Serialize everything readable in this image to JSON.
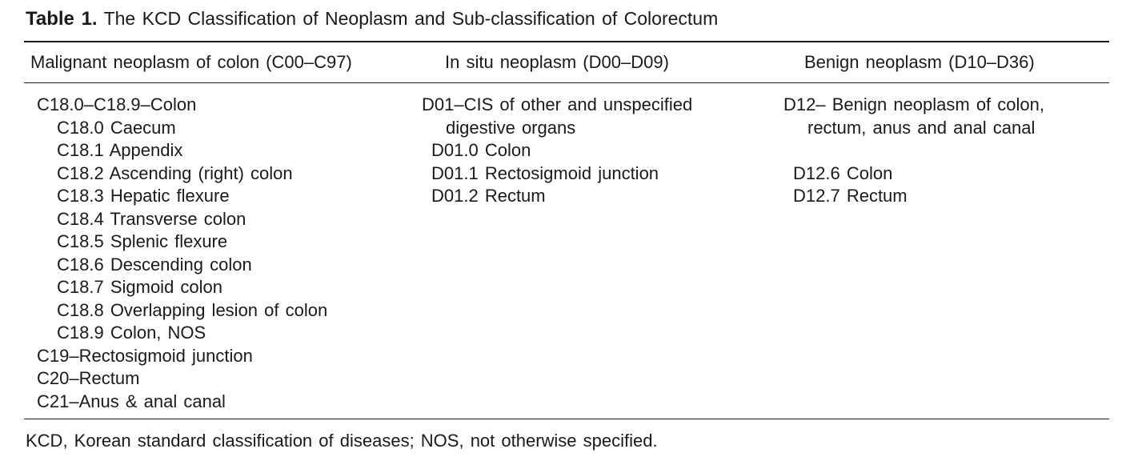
{
  "caption": {
    "label": "Table 1.",
    "title": "The KCD Classification of Neoplasm and Sub-classification of Colorectum"
  },
  "headers": [
    "Malignant neoplasm of colon (C00–C97)",
    "In situ neoplasm (D00–D09)",
    "Benign neoplasm (D10–D36)"
  ],
  "columns": {
    "malignant": [
      "C18.0–C18.9–Colon",
      "C18.0 Caecum",
      "C18.1 Appendix",
      "C18.2 Ascending (right) colon",
      "C18.3 Hepatic flexure",
      "C18.4 Transverse colon",
      "C18.5 Splenic flexure",
      "C18.6 Descending colon",
      "C18.7 Sigmoid colon",
      "C18.8 Overlapping lesion of colon",
      "C18.9 Colon, NOS",
      "C19–Rectosigmoid junction",
      "C20–Rectum",
      "C21–Anus & anal canal"
    ],
    "in_situ": [
      "D01–CIS of other and unspecified",
      "digestive organs",
      "D01.0 Colon",
      "D01.1 Rectosigmoid junction",
      "D01.2 Rectum"
    ],
    "benign": [
      "D12– Benign neoplasm of colon,",
      "rectum, anus and anal canal",
      "D12.6 Colon",
      "D12.7 Rectum"
    ]
  },
  "footnote": "KCD, Korean standard classification of diseases; NOS, not otherwise specified."
}
